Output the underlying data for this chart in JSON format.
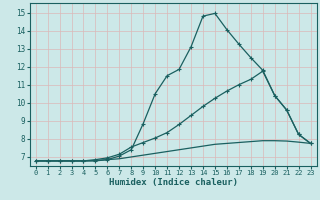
{
  "xlabel": "Humidex (Indice chaleur)",
  "bg_color": "#cce8e8",
  "grid_color": "#dbb8b8",
  "line_color": "#1a6060",
  "xlim": [
    -0.5,
    23.5
  ],
  "ylim": [
    6.5,
    15.5
  ],
  "xticks": [
    0,
    1,
    2,
    3,
    4,
    5,
    6,
    7,
    8,
    9,
    10,
    11,
    12,
    13,
    14,
    15,
    16,
    17,
    18,
    19,
    20,
    21,
    22,
    23
  ],
  "yticks": [
    7,
    8,
    9,
    10,
    11,
    12,
    13,
    14,
    15
  ],
  "curve1_x": [
    0,
    1,
    2,
    3,
    4,
    5,
    6,
    7,
    8,
    9,
    10,
    11,
    12,
    13,
    14,
    15,
    16,
    17,
    18,
    19,
    20,
    21,
    22,
    23
  ],
  "curve1_y": [
    6.78,
    6.78,
    6.78,
    6.78,
    6.78,
    6.78,
    6.85,
    7.05,
    7.4,
    8.85,
    10.5,
    11.5,
    11.85,
    13.1,
    14.8,
    14.95,
    14.05,
    13.25,
    12.5,
    11.8,
    10.4,
    9.6,
    8.25,
    7.75
  ],
  "curve2_x": [
    0,
    1,
    2,
    3,
    4,
    5,
    6,
    7,
    8,
    9,
    10,
    11,
    12,
    13,
    14,
    15,
    16,
    17,
    18,
    19,
    20,
    21,
    22,
    23
  ],
  "curve2_y": [
    6.78,
    6.78,
    6.78,
    6.78,
    6.78,
    6.85,
    6.95,
    7.15,
    7.55,
    7.8,
    8.05,
    8.35,
    8.8,
    9.3,
    9.8,
    10.25,
    10.65,
    11.0,
    11.3,
    11.75,
    10.4,
    9.6,
    8.25,
    7.75
  ],
  "curve3_x": [
    0,
    1,
    2,
    3,
    4,
    5,
    6,
    7,
    8,
    9,
    10,
    11,
    12,
    13,
    14,
    15,
    16,
    17,
    18,
    19,
    20,
    21,
    22,
    23
  ],
  "curve3_y": [
    6.78,
    6.78,
    6.78,
    6.78,
    6.78,
    6.8,
    6.85,
    6.9,
    7.0,
    7.1,
    7.2,
    7.3,
    7.4,
    7.5,
    7.6,
    7.7,
    7.75,
    7.8,
    7.85,
    7.9,
    7.9,
    7.88,
    7.82,
    7.75
  ]
}
